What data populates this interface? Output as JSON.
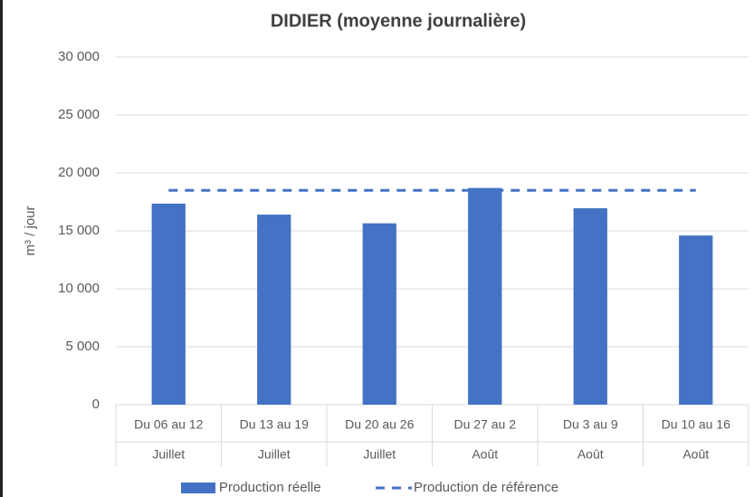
{
  "chart_data": {
    "type": "bar",
    "title": "DIDIER (moyenne journalière)",
    "y_label": "m³ / jour",
    "categories": [
      "Du 06 au 12",
      "Du 13 au 19",
      "Du 20 au 26",
      "Du 27 au 2",
      "Du 3 au 9",
      "Du 10 au 16"
    ],
    "months": [
      "Juillet",
      "Juillet",
      "Juillet",
      "Août",
      "Août",
      "Août"
    ],
    "series": [
      {
        "name": "Production réelle",
        "color": "#4472c4",
        "type": "bar",
        "values": [
          17350,
          16400,
          15650,
          18700,
          16950,
          14600
        ]
      },
      {
        "name": "Production de référence",
        "color": "#4472c4",
        "type": "line",
        "dashed": true,
        "values": [
          18500,
          18500,
          18500,
          18500,
          18500,
          18500
        ]
      }
    ],
    "ylim": [
      0,
      30000
    ],
    "yticks": [
      {
        "value": 0,
        "label": "0"
      },
      {
        "value": 5000,
        "label": "5 000"
      },
      {
        "value": 10000,
        "label": "10 000"
      },
      {
        "value": 15000,
        "label": "15 000"
      },
      {
        "value": 20000,
        "label": "20 000"
      },
      {
        "value": 25000,
        "label": "25 000"
      },
      {
        "value": 30000,
        "label": "30 000"
      }
    ],
    "grid": true,
    "legend": "bottom"
  }
}
